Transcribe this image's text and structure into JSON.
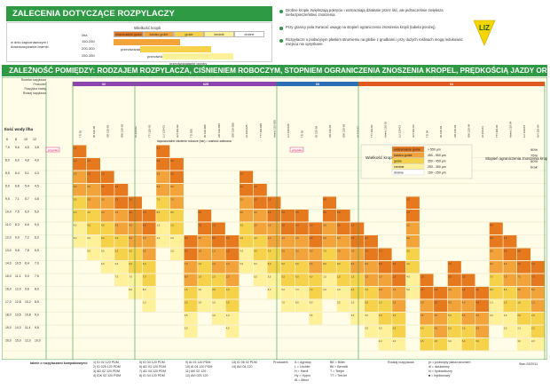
{
  "header": {
    "title": "ZALECENIA DOTYCZĄCE ROZPYLACZY",
    "main_title": "ZALEŻNOŚĆ POMIĘDZY: RODZAJEM ROZPYLACZA, CIŚNIENIEM ROBOCZYM, STOPNIEM OGRANICZENIA ZNOSZENIA KROPEL, PRĘDKOŚCIĄ JAZDY ORAZ ILOŚCIĄ WODY"
  },
  "legend": {
    "droplet_size_label": "Wielkość kropli",
    "rows": [
      {
        "label": "w dniu zapoznawczym i dostosowywania bramki",
        "value": "l/ha"
      },
      {
        "label": "",
        "value": "150-250"
      },
      {
        "label": "",
        "value": "200-300"
      },
      {
        "label": "",
        "value": "250-350"
      }
    ],
    "categories": [
      "ekstremalnie grube",
      "bardzo grube",
      "grube",
      "średnie",
      "drobne"
    ],
    "sub_labels": [
      "przeciwdziałanie herbicydy",
      "przeciwdziałanie herbicydy",
      "przeciwdziałanie grzyby"
    ],
    "colors": [
      "#e6781e",
      "#f2a33a",
      "#f6d24a",
      "#fff09a",
      "#ffffff"
    ]
  },
  "notes": [
    "Drobne krople zwiększają pokrycie i wzmacniają działanie przez liść, ale jednocześnie zwiększa niebezpieczeństwo znoszenia.",
    "Przy granicy pola zwracać uwagę na stopień ograniczenia znoszenia kropli (tabela poniżej).",
    "Rozpylacze o podwójnym płaskim strumieniu na glebie z grudkami i przy dużych roślinach mogą redukować miejsca nie opryskane."
  ],
  "logo_text": "LIZ",
  "chart_data": {
    "type": "table",
    "title": "ZALEŻNOŚĆ POMIĘDZY: RODZAJEM ROZPYLACZA, CIŚNIENIEM ROBOCZYM, STOPNIEM OGRANICZENIA ZNOSZENIA KROPEL, PRĘDKOŚCIĄ JAZDY ORAZ ILOŚCIĄ WODY",
    "row_header_labels": [
      "Rozmiar rozpylacza",
      "Producent",
      "Rozpylacz bramy",
      "Rodzaj rozpylacza"
    ],
    "axis_label": "Ilość wody l/ha",
    "speed_headers": [
      "6",
      "8",
      "10",
      "12"
    ],
    "nozzle_groups": [
      {
        "code": "02",
        "color": "#8e44ad"
      },
      {
        "code": "025",
        "color": "#8e44ad"
      },
      {
        "code": "03",
        "color": "#2c6fb7"
      },
      {
        "code": "04",
        "color": "#e05a1f"
      }
    ],
    "group_labels": [
      "dopuszczalne ciśnienie robocze (bar) = wartość zalecana",
      "przyciski",
      "przyciski"
    ],
    "nozzle_names": [
      "TD 02",
      "ID 120-02",
      "AD 120-02",
      "IDK 120-02",
      "AI 110-02",
      "TTI 110-02",
      "LU 120-02",
      "AVI 110-02",
      "TD 025",
      "ID 120-025",
      "AD 120-025",
      "IDK 120-025",
      "AI 110-025",
      "TTI 110-025",
      "Airmix 110-025",
      "LU 120-025",
      "TD 03",
      "ID 120-03",
      "AD 120-03",
      "IDK 120-03",
      "AI 110-03",
      "TTI 110-03",
      "Airmix 110-03",
      "LU 120-03",
      "AVI 110-03",
      "TD 04",
      "ID 120-04",
      "AD 120-04",
      "IDK 120-04",
      "AI 110-04",
      "TTI 110-04",
      "Airmix 110-04",
      "LU 120-04",
      "AVI 110-04"
    ],
    "water_rates": [
      {
        "row": [
          "7,5",
          "5,6",
          "4,5",
          "3,8"
        ]
      },
      {
        "row": [
          "8,0",
          "6,0",
          "4,8",
          "4,0"
        ]
      },
      {
        "row": [
          "8,5",
          "6,4",
          "5,1",
          "4,3"
        ]
      },
      {
        "row": [
          "9,0",
          "6,8",
          "5,4",
          "4,5"
        ]
      },
      {
        "row": [
          "9,5",
          "7,1",
          "5,7",
          "4,8"
        ]
      },
      {
        "row": [
          "10,0",
          "7,5",
          "6,0",
          "5,0"
        ]
      },
      {
        "row": [
          "11,0",
          "8,3",
          "6,6",
          "5,5"
        ]
      },
      {
        "row": [
          "12,0",
          "9,0",
          "7,2",
          "6,0"
        ]
      },
      {
        "row": [
          "13,0",
          "9,8",
          "7,8",
          "6,5"
        ]
      },
      {
        "row": [
          "14,0",
          "10,5",
          "8,4",
          "7,0"
        ]
      },
      {
        "row": [
          "15,0",
          "11,3",
          "9,0",
          "7,5"
        ]
      },
      {
        "row": [
          "16,0",
          "12,0",
          "9,6",
          "8,0"
        ]
      },
      {
        "row": [
          "17,0",
          "12,8",
          "10,2",
          "8,5"
        ]
      },
      {
        "row": [
          "18,0",
          "13,5",
          "10,8",
          "9,0"
        ]
      },
      {
        "row": [
          "19,0",
          "14,3",
          "11,4",
          "9,5"
        ]
      },
      {
        "row": [
          "20,0",
          "15,0",
          "12,0",
          "10,0"
        ]
      }
    ],
    "droplet_legend": {
      "title": "Wielkość kropli",
      "items": [
        {
          "label": "ekstremalnie grube",
          "range": "> 550 μm",
          "color": "#e6781e"
        },
        {
          "label": "bardzo grube",
          "range": "450 - 550 μm",
          "color": "#f2a33a"
        },
        {
          "label": "grube",
          "range": "350 - 450 μm",
          "color": "#f6d24a"
        },
        {
          "label": "średnie",
          "range": "250 - 350 μm",
          "color": "#fff09a"
        },
        {
          "label": "drobne",
          "range": "150 - 250 μm",
          "color": "#ffffff"
        }
      ]
    },
    "drift_legend": {
      "title": "Stopień ograniczenia znoszenia kropli",
      "items": [
        "90%",
        "75%",
        "50%",
        "brak"
      ]
    }
  },
  "footer": {
    "caption": "tabele z rozpylaczami kompaktowymi:",
    "columns": [
      [
        "1) ID 02 120 PDM",
        "2) ID 025 120 PDM",
        "3) AD 02 120 PDM",
        "4) IDK 02 120 PDM"
      ],
      [
        "5) ID 03 120 PDM",
        "6) AD 03 120 PDM",
        "7) AD 04 120 PDM",
        "8) ID 04 120 PDM"
      ],
      [
        "9) AI 03 120 PDM",
        "10) AI 04 120 PDM",
        "11) AVI 02 120",
        "12) AVI 025 120"
      ],
      [
        "13) ID 06 02 PDM",
        "14) AVI 04 120"
      ]
    ],
    "producers_label": "Producent:",
    "producers": [
      "A = Agrotop",
      "L = Lechler",
      "H = Hardi",
      "Hy = Hypro",
      "Al = Albuz"
    ],
    "producers2": [
      "BE = Billet",
      "Bk = Bercelli",
      "T = Teejet",
      "TT = TeeJet"
    ],
    "rodzaj_label": "Rodzaj rozpylacza:",
    "symbols": [
      "pr = podwójny płaski strumień",
      "dl = dwulotowy",
      "hl = hydrauliczny",
      "■ = injektorowy"
    ],
    "version": "Stan 03/2011"
  }
}
